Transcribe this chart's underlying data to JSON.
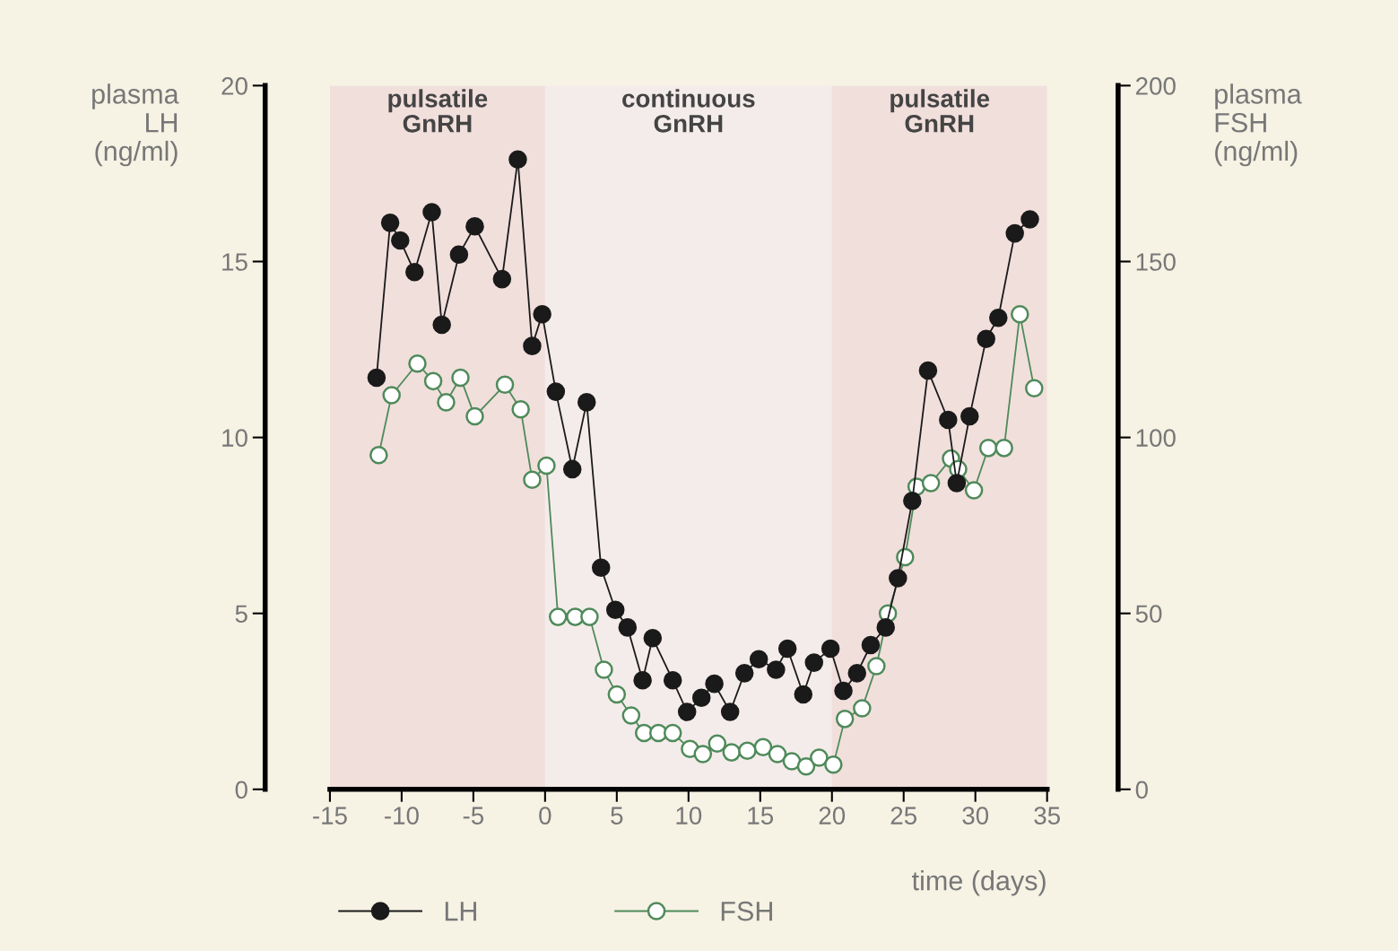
{
  "chart_data": {
    "type": "line",
    "xlabel": "time (days)",
    "ylabel": "plasma\nLH\n(ng/ml)",
    "y2label": "plasma\nFSH\n(ng/ml)",
    "xlim": [
      -15,
      35
    ],
    "xticks": [
      -15,
      -10,
      -5,
      0,
      5,
      10,
      15,
      20,
      25,
      30,
      35
    ],
    "ylim": [
      0,
      20
    ],
    "yticks": [
      0,
      5,
      10,
      15,
      20
    ],
    "y2lim": [
      0,
      200
    ],
    "y2ticks": [
      0,
      50,
      100,
      150,
      200
    ],
    "grid": false,
    "legend": "bottom left",
    "marker": "circle",
    "line_style": "solid",
    "bands": [
      {
        "axis": "x",
        "from": -15,
        "to": 0,
        "label": "pulsatile\nGnRH",
        "color": "#f1dfdc"
      },
      {
        "axis": "x",
        "from": 0,
        "to": 20,
        "label": "continuous\nGnRH",
        "color": "#f4ecea"
      },
      {
        "axis": "x",
        "from": 20,
        "to": 35,
        "label": "pulsatile\nGnRH",
        "color": "#f1dfdc"
      }
    ],
    "series": [
      {
        "name": "LH",
        "color": "#1a1a1a",
        "x": [
          -11.75,
          -10.8,
          -10.1,
          -9.1,
          -7.9,
          -7.2,
          -6,
          -4.9,
          -3,
          -1.9,
          -0.9,
          -0.2,
          0.75,
          1.9,
          2.9,
          3.9,
          4.9,
          5.75,
          6.8,
          7.5,
          8.9,
          9.9,
          10.9,
          11.8,
          12.9,
          13.9,
          14.9,
          16.1,
          16.9,
          18,
          18.75,
          19.9,
          20.8,
          21.75,
          22.7,
          23.75,
          24.6,
          25.6,
          26.7,
          28.1,
          28.7,
          29.6,
          30.75,
          31.6,
          32.75,
          33.8
        ],
        "values": [
          11.7,
          16.1,
          15.6,
          14.7,
          16.4,
          13.2,
          15.2,
          16.0,
          14.5,
          17.9,
          12.6,
          13.5,
          11.3,
          9.1,
          11.0,
          6.3,
          5.1,
          4.6,
          3.1,
          4.3,
          3.1,
          2.2,
          2.6,
          3.0,
          2.2,
          3.3,
          3.7,
          3.4,
          4.0,
          2.7,
          3.6,
          4.0,
          2.8,
          3.3,
          4.1,
          4.6,
          6.0,
          8.2,
          11.9,
          10.5,
          8.7,
          10.6,
          12.8,
          13.4,
          15.8,
          16.2
        ]
      },
      {
        "name": "FSH",
        "color": "#4f8a5a",
        "axis": "y2",
        "x": [
          -11.6,
          -10.7,
          -8.9,
          -7.8,
          -6.9,
          -5.9,
          -4.9,
          -2.8,
          -1.7,
          -0.9,
          0.1,
          0.9,
          2.1,
          3.1,
          4.1,
          5,
          6,
          6.9,
          7.9,
          8.9,
          10.1,
          11,
          12,
          13,
          14.1,
          15.2,
          16.2,
          17.2,
          18.2,
          19.1,
          20.1,
          20.9,
          22.1,
          23.1,
          23.9,
          25.1,
          25.9,
          26.9,
          28.3,
          28.8,
          29.9,
          30.9,
          32,
          33.1,
          34.1
        ],
        "values": [
          95,
          112,
          121,
          116,
          110,
          117,
          106,
          115,
          108,
          88,
          92,
          49,
          49,
          49,
          34,
          27,
          21,
          16,
          16,
          16,
          11.5,
          10,
          13,
          10.5,
          11,
          12,
          10,
          8,
          6.5,
          9,
          7,
          20,
          23,
          35,
          50,
          66,
          86,
          87,
          94,
          91,
          85,
          97,
          97,
          135,
          114
        ]
      }
    ]
  }
}
